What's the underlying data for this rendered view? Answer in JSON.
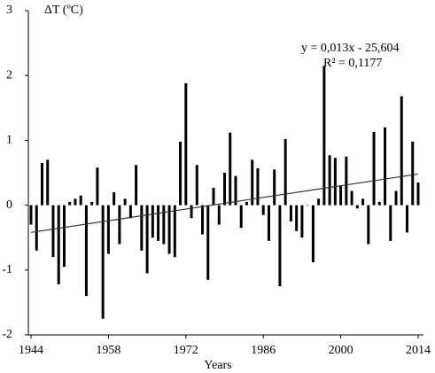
{
  "chart_data": {
    "type": "bar",
    "y_axis_label": "ΔT (ºC)",
    "x_axis_label": "Years",
    "annotation": [
      "y = 0,013x - 25,604",
      "R² = 0,1177"
    ],
    "x": [
      1944,
      1945,
      1946,
      1947,
      1948,
      1949,
      1950,
      1951,
      1952,
      1953,
      1954,
      1955,
      1956,
      1957,
      1958,
      1959,
      1960,
      1961,
      1962,
      1963,
      1964,
      1965,
      1966,
      1967,
      1968,
      1969,
      1970,
      1971,
      1972,
      1973,
      1974,
      1975,
      1976,
      1977,
      1978,
      1979,
      1980,
      1981,
      1982,
      1983,
      1984,
      1985,
      1986,
      1987,
      1988,
      1989,
      1990,
      1991,
      1992,
      1993,
      1994,
      1995,
      1996,
      1997,
      1998,
      1999,
      2000,
      2001,
      2002,
      2003,
      2004,
      2005,
      2006,
      2007,
      2008,
      2009,
      2010,
      2011,
      2012,
      2013,
      2014
    ],
    "values": [
      -0.3,
      -0.7,
      0.65,
      0.7,
      -0.8,
      -1.22,
      -0.95,
      0.05,
      0.1,
      0.15,
      -1.4,
      0.05,
      0.58,
      -1.75,
      -0.75,
      0.2,
      -0.6,
      0.1,
      -0.2,
      0.62,
      -0.7,
      -1.05,
      -0.5,
      -0.55,
      -0.6,
      -0.75,
      -0.8,
      0.98,
      1.88,
      -0.2,
      0.62,
      -0.45,
      -1.15,
      0.27,
      -0.3,
      0.5,
      1.12,
      0.45,
      -0.35,
      0.05,
      0.7,
      0.57,
      -0.15,
      -0.55,
      0.55,
      -1.25,
      1.02,
      -0.25,
      -0.4,
      -0.5,
      0.0,
      -0.88,
      0.1,
      2.15,
      0.77,
      0.73,
      0.3,
      0.75,
      0.22,
      -0.05,
      0.1,
      -0.6,
      1.13,
      0.05,
      1.2,
      -0.55,
      0.22,
      1.68,
      -0.42,
      0.98,
      0.35
    ],
    "color": "#000000",
    "trendline": {
      "x": [
        1944,
        2014
      ],
      "values": [
        -0.42,
        0.48
      ],
      "color": "#333333"
    },
    "xlim": [
      1944,
      2014
    ],
    "xticks": [
      1944,
      1958,
      1972,
      1986,
      2000,
      2014
    ],
    "ylim": [
      -2,
      3
    ],
    "yticks": [
      -2,
      -1,
      0,
      1,
      2,
      3
    ]
  }
}
